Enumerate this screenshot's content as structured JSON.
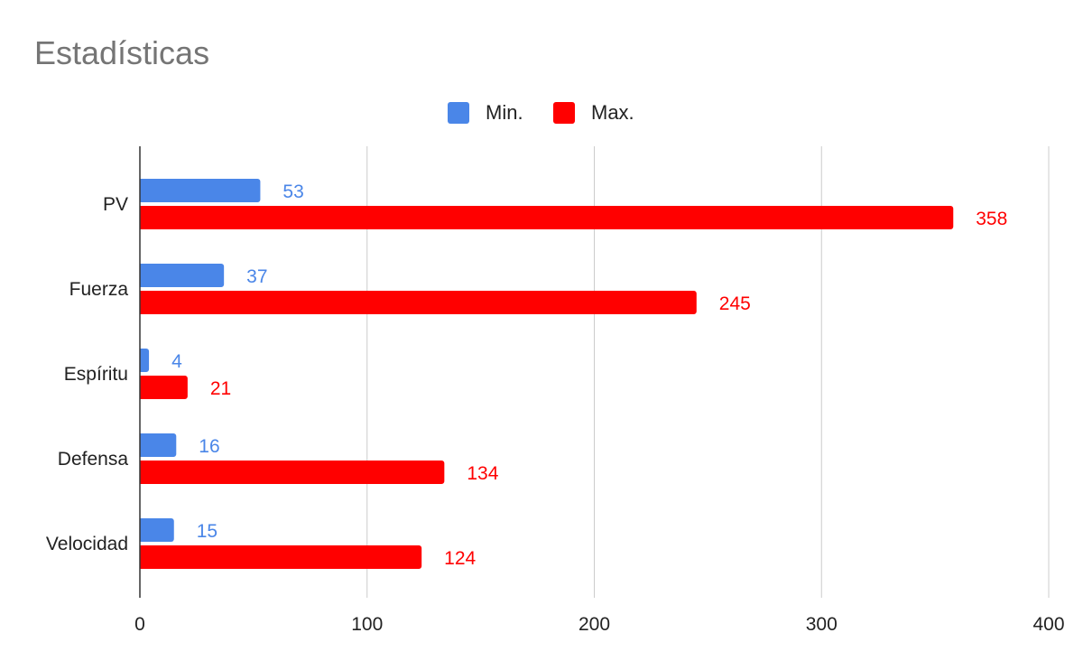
{
  "chart_data": {
    "type": "bar",
    "orientation": "horizontal",
    "title": "Estadísticas",
    "xlabel": "",
    "ylabel": "",
    "categories": [
      "PV",
      "Fuerza",
      "Espíritu",
      "Defensa",
      "Velocidad"
    ],
    "series": [
      {
        "name": "Min.",
        "values": [
          53,
          37,
          4,
          16,
          15
        ],
        "color": "#4a86e8"
      },
      {
        "name": "Max.",
        "values": [
          358,
          245,
          21,
          134,
          124
        ],
        "color": "#ff0000"
      }
    ],
    "xlim": [
      0,
      400
    ],
    "xticks": [
      "0",
      "100",
      "200",
      "300",
      "400"
    ],
    "grid": "vertical",
    "legend_position": "top",
    "data_labels": true
  }
}
